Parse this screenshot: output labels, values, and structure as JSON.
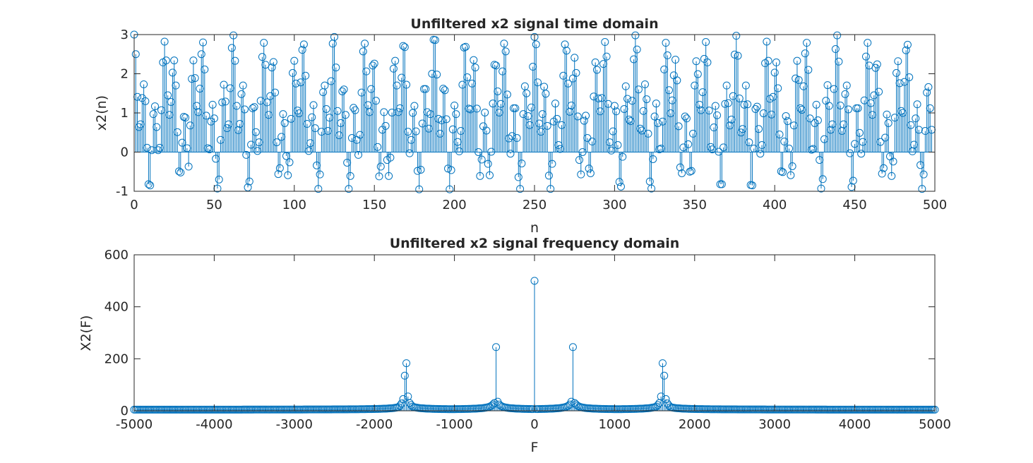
{
  "figure": {
    "background": "#ffffff",
    "series_color": "#0072BD",
    "axis_color": "#262626"
  },
  "chart_data": [
    {
      "type": "stem",
      "title": "Unfiltered x2 signal time domain",
      "xlabel": "n",
      "ylabel": "x2(n)",
      "xlim": [
        0,
        500
      ],
      "ylim": [
        -1,
        3
      ],
      "xticks": [
        0,
        50,
        100,
        150,
        200,
        250,
        300,
        350,
        400,
        450,
        500
      ],
      "yticks": [
        -1,
        0,
        1,
        2,
        3
      ],
      "grid": false,
      "marker": "circle",
      "n_start": 0,
      "values": [
        3.0,
        2.5,
        1.41,
        0.64,
        0.71,
        1.38,
        1.73,
        1.3,
        0.11,
        -0.82,
        -0.85,
        0.05,
        0.97,
        1.17,
        0.64,
        0.05,
        0.11,
        1.07,
        2.29,
        2.82,
        2.34,
        1.45,
        0.95,
        1.28,
        2.03,
        2.34,
        1.7,
        0.51,
        -0.49,
        -0.52,
        0.24,
        0.9,
        0.88,
        0.1,
        -0.37,
        0.68,
        1.87,
        2.34,
        1.89,
        1.18,
        1.02,
        1.62,
        2.5,
        2.8,
        2.11,
        0.93,
        0.1,
        0.07,
        0.78,
        1.21,
        0.86,
        -0.17,
        -0.93,
        -0.7,
        0.31,
        1.27,
        1.72,
        1.29,
        0.61,
        0.71,
        1.63,
        2.66,
        2.98,
        2.33,
        1.18,
        0.56,
        0.72,
        1.48,
        1.7,
        1.09,
        -0.07,
        -0.9,
        -0.75,
        0.19,
        1.12,
        1.15,
        0.51,
        0.03,
        0.25,
        1.31,
        2.43,
        2.79,
        2.23,
        1.27,
        0.95,
        1.43,
        2.16,
        2.3,
        1.52,
        0.25,
        -0.56,
        -0.41,
        0.39,
        0.97,
        0.74,
        -0.1,
        -0.59,
        -0.26,
        0.85,
        2.02,
        2.33,
        1.75,
        1.06,
        0.99,
        1.78,
        2.61,
        2.75,
        1.95,
        0.72,
        0.03,
        0.23,
        0.89,
        1.2,
        0.61,
        -0.34,
        -0.94,
        -0.57,
        0.52,
        1.53,
        1.7,
        1.1,
        0.54,
        0.88,
        1.81,
        2.77,
        2.94,
        2.16,
        1.05,
        0.43,
        0.74,
        1.55,
        1.6,
        0.95,
        -0.27,
        -0.94,
        -0.61,
        0.36,
        1.13,
        1.07,
        0.31,
        -0.07,
        0.44,
        1.52,
        2.57,
        2.77,
        2.06,
        1.2,
        1.02,
        1.61,
        2.21,
        2.26,
        1.31,
        0.13,
        -0.62,
        -0.37,
        0.57,
        1.02,
        0.67,
        -0.2,
        -0.61,
        -0.14,
        1.01,
        2.13,
        2.33,
        1.7,
        1.02,
        1.12,
        1.9,
        2.71,
        2.68,
        1.72,
        0.52,
        -0.03,
        0.31,
        1.0,
        1.18,
        0.53,
        -0.48,
        -0.95,
        -0.45,
        0.73,
        1.61,
        1.61,
        1.02,
        0.6,
        0.97,
        2.0,
        2.87,
        2.86,
        1.98,
        0.85,
        0.47,
        0.81,
        1.62,
        1.58,
        0.84,
        -0.42,
        -0.95,
        -0.46,
        0.58,
        1.19,
        0.97,
        0.26,
        0.02,
        0.54,
        1.72,
        2.67,
        2.69,
        1.91,
        1.11,
        1.09,
        1.75,
        2.35,
        2.16,
        1.11,
        0.0,
        -0.61,
        -0.19,
        0.66,
        1.01,
        0.55,
        -0.3,
        -0.59,
        0.01,
        1.24,
        2.23,
        2.21,
        1.55,
        1.01,
        1.23,
        2.06,
        2.77,
        2.57,
        1.47,
        0.35,
        -0.04,
        0.41,
        1.12,
        1.12,
        0.36,
        -0.64,
        -0.94,
        -0.29,
        0.97,
        1.68,
        1.5,
        0.92,
        0.69,
        1.14,
        2.18,
        2.94,
        2.75,
        1.78,
        0.73,
        0.52,
        0.97,
        1.67,
        1.49,
        0.67,
        -0.6,
        -0.94,
        -0.3,
        0.78,
        1.24,
        0.85,
        0.18,
        0.08,
        0.69,
        1.95,
        2.75,
        2.59,
        1.75,
        1.03,
        1.19,
        1.88,
        2.41,
        2.02,
        0.91,
        -0.2,
        -0.57,
        0.0,
        0.8,
        0.93,
        0.36,
        -0.42,
        -0.54,
        0.27,
        1.42,
        2.29,
        2.1,
        1.37,
        1.04,
        1.38,
        2.25,
        2.81,
        2.44,
        1.23,
        0.25,
        0.04,
        0.53,
        1.18,
        1.04,
        0.18,
        -0.76,
        -0.88,
        -0.12,
        1.1,
        1.68,
        1.36,
        0.83,
        0.79,
        1.31,
        2.37,
        2.98,
        2.62,
        1.6,
        0.6,
        0.55,
        1.05,
        1.73,
        1.35,
        0.47,
        -0.75,
        -0.93,
        -0.18,
        0.91,
        1.24,
        0.74,
        0.07,
        0.09,
        0.78,
        2.11,
        2.79,
        2.47,
        1.58,
        0.99,
        1.32,
        1.96,
        2.36,
        1.83,
        0.66,
        -0.39,
        -0.54,
        0.12,
        0.91,
        0.86,
        0.2,
        -0.5,
        -0.48,
        0.47,
        1.7,
        2.32,
        1.99,
        1.21,
        1.07,
        1.53,
        2.38,
        2.81,
        2.29,
        1.06,
        0.13,
        0.07,
        0.63,
        1.18,
        0.94,
        0.01,
        -0.82,
        -0.82,
        0.12,
        1.23,
        1.7,
        1.25,
        0.68,
        0.83,
        1.43,
        2.49,
        2.97,
        2.46,
        1.37,
        0.5,
        0.59,
        1.21,
        1.7,
        1.22,
        0.25,
        -0.84,
        -0.85,
        0.09,
        1.1,
        1.16,
        0.59,
        -0.04,
        0.18,
        0.99,
        2.27,
        2.82,
        2.33,
        1.36,
        0.96,
        1.41,
        2.03,
        2.29,
        1.63,
        0.45,
        -0.49,
        -0.51,
        0.27,
        0.92,
        0.79,
        0.09,
        -0.59,
        -0.36,
        0.68,
        1.88,
        2.33,
        1.84,
        1.12,
        1.08,
        1.68,
        2.52,
        2.79,
        2.1,
        0.86,
        0.06,
        0.08,
        0.74,
        1.21,
        0.81,
        -0.2,
        -0.93,
        -0.69,
        0.33,
        1.31,
        1.71,
        1.18,
        0.57,
        0.71,
        1.61,
        2.63,
        2.98,
        2.31,
        1.19,
        0.54,
        0.71,
        1.48,
        1.7,
        1.09,
        -0.03,
        -0.89,
        -0.73,
        0.21,
        1.12,
        1.12,
        0.49,
        -0.04,
        0.26,
        1.32,
        2.44,
        2.79,
        2.21,
        1.25,
        0.95,
        1.45,
        2.15,
        2.24,
        1.54,
        0.26,
        -0.55,
        -0.41,
        0.37,
        0.96,
        0.74,
        -0.11,
        -0.61,
        -0.24,
        0.88,
        2.02,
        2.32,
        1.76,
        1.05,
        1.0,
        1.79,
        2.6,
        2.74,
        1.91,
        0.69,
        0.02,
        0.19,
        0.86,
        1.22,
        0.57,
        -0.33,
        -0.94,
        -0.57,
        0.54,
        1.52,
        1.66,
        1.12,
        0.57
      ]
    },
    {
      "type": "stem",
      "title": "Unfiltered x2 signal frequency domain",
      "xlabel": "F",
      "ylabel": "X2(F)",
      "xlim": [
        -5000,
        5000
      ],
      "ylim": [
        0,
        600
      ],
      "xticks": [
        -5000,
        -4000,
        -3000,
        -2000,
        -1000,
        0,
        1000,
        2000,
        3000,
        4000,
        5000
      ],
      "yticks": [
        0,
        200,
        400,
        600
      ],
      "grid": false,
      "marker": "circle",
      "f_step": 20,
      "peaks": [
        {
          "f": 0,
          "value": 500
        },
        {
          "f": -480,
          "value": 245
        },
        {
          "f": 480,
          "value": 245
        },
        {
          "f": -1600,
          "value": 183
        },
        {
          "f": 1600,
          "value": 183
        },
        {
          "f": -1620,
          "value": 135
        },
        {
          "f": 1620,
          "value": 135
        },
        {
          "f": -1580,
          "value": 55
        },
        {
          "f": 1580,
          "value": 55
        },
        {
          "f": -1640,
          "value": 45
        },
        {
          "f": 1640,
          "value": 45
        },
        {
          "f": -460,
          "value": 35
        },
        {
          "f": 460,
          "value": 35
        },
        {
          "f": -500,
          "value": 30
        },
        {
          "f": 500,
          "value": 30
        },
        {
          "f": -1560,
          "value": 30
        },
        {
          "f": 1560,
          "value": 30
        },
        {
          "f": -1660,
          "value": 28
        },
        {
          "f": 1660,
          "value": 28
        },
        {
          "f": -1540,
          "value": 22
        },
        {
          "f": 1540,
          "value": 22
        },
        {
          "f": -1680,
          "value": 20
        },
        {
          "f": 1680,
          "value": 20
        }
      ],
      "background_level": 4
    }
  ]
}
